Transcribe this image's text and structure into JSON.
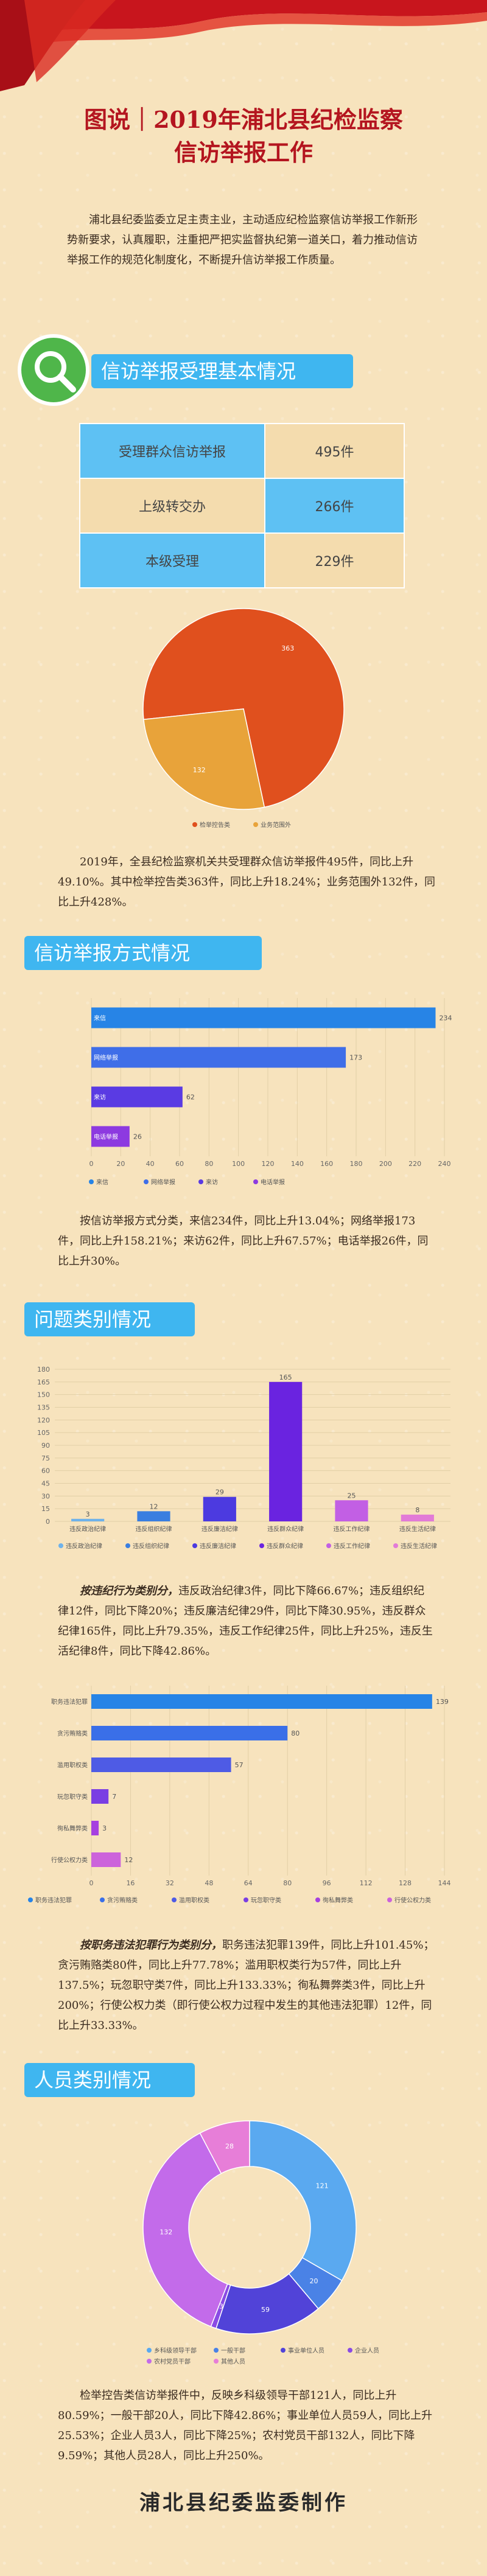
{
  "title_line1": "图说｜2019年浦北县纪检监察",
  "title_line2": "信访举报工作",
  "intro": "浦北县纪委监委立足主责主业，主动适应纪检监察信访举报工作新形势新要求，认真履职，注重把严把实监督执纪第一道关口，着力推动信访举报工作的规范化制度化，不断提升信访举报工作质量。",
  "sections": {
    "basic": "信访举报受理基本情况",
    "method": "信访举报方式情况",
    "category": "问题类别情况",
    "personnel": "人员类别情况"
  },
  "table": {
    "rows": [
      {
        "label": "受理群众信访举报",
        "value": "495件"
      },
      {
        "label": "上级转交办",
        "value": "266件"
      },
      {
        "label": "本级受理",
        "value": "229件"
      }
    ]
  },
  "para_basic": "2019年，全县纪检监察机关共受理群众信访举报件495件，同比上升49.10%。其中检举控告类363件，同比上升18.24%；业务范围外132件，同比上升428%。",
  "para_method": "按信访举报方式分类，来信234件，同比上升13.04%；网络举报173件，同比上升158.21%；来访62件，同比上升67.57%；电话举报26件，同比上升30%。",
  "para_category_lead": "按违纪行为类别分，",
  "para_category": "违反政治纪律3件，同比下降66.67%；违反组织纪律12件，同比下降20%；违反廉洁纪律29件，同比下降30.95%，违反群众纪律165件，同比上升79.35%，违反工作纪律25件，同比上升25%，违反生活纪律8件，同比下降42.86%。",
  "para_crime_lead": "按职务违法犯罪行为类别分，",
  "para_crime": "职务违法犯罪139件，同比上升101.45%；贪污贿赂类80件，同比上升77.78%；滥用职权类行为57件，同比上升137.5%；玩忽职守类7件，同比上升133.33%；徇私舞弊类3件，同比上升200%；行使公权力类（即行使公权力过程中发生的其他违法犯罪）12件，同比上升33.33%。",
  "para_personnel": "检举控告类信访举报件中，反映乡科级领导干部121人，同比上升80.59%；一般干部20人，同比下降42.86%；事业单位人员59人，同比上升25.53%；企业人员3人，同比下降25%；农村党员干部132人，同比下降9.59%；其他人员28人，同比上升250%。",
  "footer": "浦北县纪委监委制作",
  "colors": {
    "red": "#b4151f",
    "band": "#3fb6f0",
    "orange": "#e0501e",
    "gold": "#e8a33a",
    "blue": "#2784e6",
    "purple": "#6a23e0"
  },
  "chart_data": [
    {
      "type": "pie",
      "title": "",
      "categories": [
        "检举控告类",
        "业务范围外"
      ],
      "values": [
        363,
        132
      ],
      "colors": [
        "#e0501e",
        "#e8a33a"
      ],
      "legend": "bottom"
    },
    {
      "type": "bar",
      "orientation": "horizontal",
      "categories": [
        "来信",
        "网络举报",
        "来访",
        "电话举报"
      ],
      "values": [
        234,
        173,
        62,
        26
      ],
      "colors": [
        "#2784e6",
        "#3f6ee8",
        "#5a3be3",
        "#8d3ae0"
      ],
      "xticks": [
        "0",
        "20",
        "40",
        "60",
        "80",
        "100",
        "120",
        "140",
        "160",
        "180",
        "200",
        "220",
        "240"
      ],
      "xlim": [
        0,
        240
      ],
      "legend": "bottom"
    },
    {
      "type": "bar",
      "categories": [
        "违反政治纪律",
        "违反组织纪律",
        "违反廉洁纪律",
        "违反群众纪律",
        "违反工作纪律",
        "违反生活纪律"
      ],
      "values": [
        3,
        12,
        29,
        165,
        25,
        8
      ],
      "colors": [
        "#6fb2ea",
        "#3a7ee0",
        "#4c3ae0",
        "#6a23e0",
        "#c25fe4",
        "#e27bd7"
      ],
      "yticks": [
        "0",
        "15",
        "30",
        "45",
        "60",
        "75",
        "90",
        "105",
        "120",
        "135",
        "150",
        "165",
        "180"
      ],
      "ylim": [
        0,
        180
      ],
      "legend": "bottom"
    },
    {
      "type": "bar",
      "orientation": "horizontal",
      "categories": [
        "职务违法犯罪",
        "贪污贿赂类",
        "滥用职权类",
        "玩忽职守类",
        "徇私舞弊类",
        "行使公权力类"
      ],
      "values": [
        139,
        80,
        57,
        7,
        3,
        12
      ],
      "colors": [
        "#2784e6",
        "#3a6fe8",
        "#4e5be5",
        "#7a3ee3",
        "#a640e0",
        "#cc63db"
      ],
      "xticks": [
        "0",
        "16",
        "32",
        "48",
        "64",
        "80",
        "96",
        "112",
        "128",
        "144"
      ],
      "xlim": [
        0,
        144
      ],
      "legend": "bottom"
    },
    {
      "type": "pie",
      "style": "donut",
      "categories": [
        "乡科级领导干部",
        "一般干部",
        "事业单位人员",
        "企业人员",
        "农村党员干部",
        "其他人员"
      ],
      "values": [
        121,
        20,
        59,
        3,
        132,
        28
      ],
      "colors": [
        "#5aa9f0",
        "#4a82e6",
        "#5143d8",
        "#8a4be4",
        "#c36bea",
        "#e77ed8"
      ],
      "legend": "bottom"
    }
  ]
}
